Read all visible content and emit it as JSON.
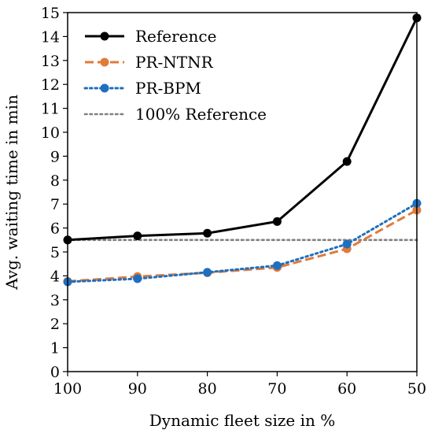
{
  "chart_data": {
    "type": "line",
    "title": "",
    "xlabel": "Dynamic fleet size in %",
    "ylabel": "Avg. waiting time in min",
    "x": [
      100,
      90,
      80,
      70,
      60,
      50
    ],
    "xlim": [
      100,
      50
    ],
    "ylim": [
      0,
      15
    ],
    "x_ticks": [
      "100",
      "90",
      "80",
      "70",
      "60",
      "50"
    ],
    "y_ticks": [
      "0",
      "1",
      "2",
      "3",
      "4",
      "5",
      "6",
      "7",
      "8",
      "9",
      "10",
      "11",
      "12",
      "13",
      "14",
      "15"
    ],
    "grid": false,
    "legend_position": "top-left",
    "series": [
      {
        "name": "Reference",
        "values": [
          5.5,
          5.67,
          5.78,
          6.27,
          8.78,
          14.78
        ],
        "color": "#000000",
        "style": "solid",
        "marker": true
      },
      {
        "name": "PR-NTNR",
        "values": [
          3.77,
          3.97,
          4.13,
          4.35,
          5.13,
          6.75
        ],
        "color": "#e07b39",
        "style": "dashed",
        "marker": true
      },
      {
        "name": "PR-BPM",
        "values": [
          3.75,
          3.88,
          4.15,
          4.43,
          5.33,
          7.03
        ],
        "color": "#1f6fbf",
        "style": "dotted",
        "marker": true
      },
      {
        "name": "100% Reference",
        "values": [
          5.5,
          5.5,
          5.5,
          5.5,
          5.5,
          5.5
        ],
        "color": "#808080",
        "style": "dotted",
        "marker": false
      }
    ]
  }
}
